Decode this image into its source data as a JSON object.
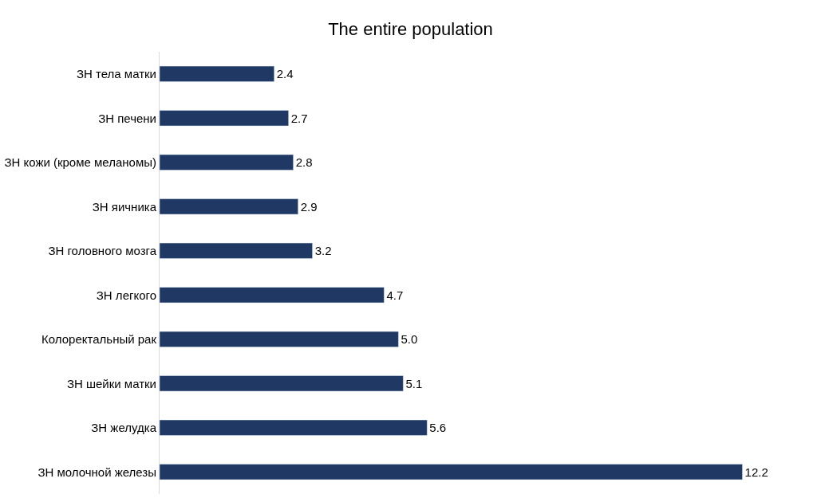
{
  "chart_data": {
    "type": "bar",
    "orientation": "horizontal",
    "title": "The entire population",
    "categories": [
      "ЗН тела матки",
      "ЗН печени",
      "ЗН кожи (кроме меланомы)",
      "ЗН яичника",
      "ЗН головного мозга",
      "ЗН легкого",
      "Колоректальный рак",
      "ЗН шейки матки",
      "ЗН желудка",
      "ЗН молочной железы"
    ],
    "values": [
      2.4,
      2.7,
      2.8,
      2.9,
      3.2,
      4.7,
      5.0,
      5.1,
      5.6,
      12.2
    ],
    "value_labels": [
      "2.4",
      "2.7",
      "2.8",
      "2.9",
      "3.2",
      "4.7",
      "5.0",
      "5.1",
      "5.6",
      "12.2"
    ],
    "color": "#1f3864",
    "tick_labels": "y"
  }
}
